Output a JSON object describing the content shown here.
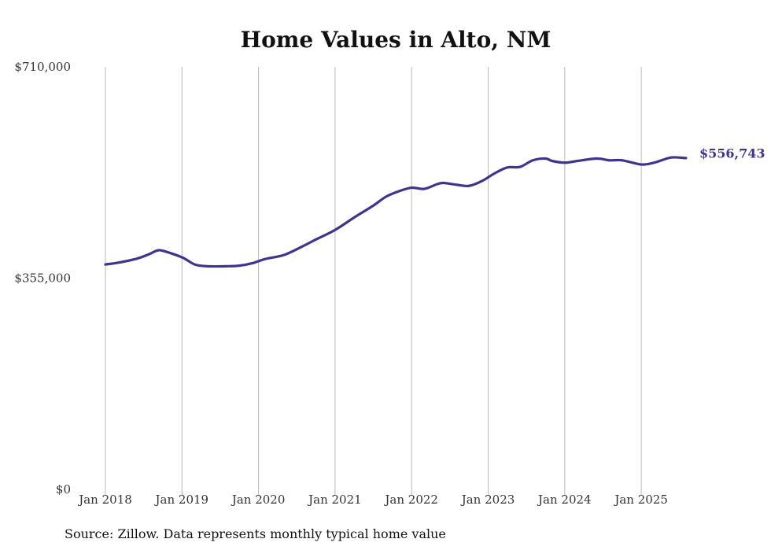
{
  "chart_data": {
    "type": "line",
    "title": "Home Values in Alto, NM",
    "xlabel": "",
    "ylabel": "",
    "ylim": [
      0,
      710000
    ],
    "y_ticks": [
      {
        "value": 0,
        "label": "$0"
      },
      {
        "value": 355000,
        "label": "$355,000"
      },
      {
        "value": 710000,
        "label": "$710,000"
      }
    ],
    "x_ticks": [
      {
        "value": 2018,
        "label": "Jan 2018"
      },
      {
        "value": 2019,
        "label": "Jan 2019"
      },
      {
        "value": 2020,
        "label": "Jan 2020"
      },
      {
        "value": 2021,
        "label": "Jan 2021"
      },
      {
        "value": 2022,
        "label": "Jan 2022"
      },
      {
        "value": 2023,
        "label": "Jan 2023"
      },
      {
        "value": 2024,
        "label": "Jan 2024"
      },
      {
        "value": 2025,
        "label": "Jan 2025"
      }
    ],
    "grid": "vertical",
    "series": [
      {
        "color": "#3d3590",
        "end_label": "$556,743",
        "x": [
          "2018-01",
          "2018-03",
          "2018-06",
          "2018-08",
          "2018-09",
          "2018-10",
          "2019-01",
          "2019-03",
          "2019-05",
          "2019-08",
          "2019-10",
          "2019-12",
          "2020-02",
          "2020-05",
          "2020-08",
          "2020-10",
          "2021-01",
          "2021-04",
          "2021-07",
          "2021-09",
          "2021-11",
          "2022-01",
          "2022-03",
          "2022-05",
          "2022-06",
          "2022-08",
          "2022-10",
          "2022-12",
          "2023-02",
          "2023-04",
          "2023-06",
          "2023-08",
          "2023-10",
          "2023-11",
          "2024-01",
          "2024-03",
          "2024-06",
          "2024-08",
          "2024-10",
          "2025-01",
          "2025-03",
          "2025-05",
          "2025-06",
          "2025-08"
        ],
        "y": [
          378000,
          381000,
          388000,
          396000,
          401000,
          401000,
          390000,
          378000,
          375000,
          375000,
          376000,
          380000,
          387000,
          394000,
          409000,
          420000,
          436000,
          457000,
          477000,
          492000,
          501000,
          507000,
          505000,
          513000,
          515000,
          512000,
          510000,
          518000,
          531000,
          541000,
          542000,
          553000,
          556000,
          552000,
          549000,
          552000,
          556000,
          553000,
          553000,
          546000,
          549000,
          556000,
          558000,
          556743
        ]
      }
    ],
    "source": "Source: Zillow. Data represents monthly typical home value"
  }
}
